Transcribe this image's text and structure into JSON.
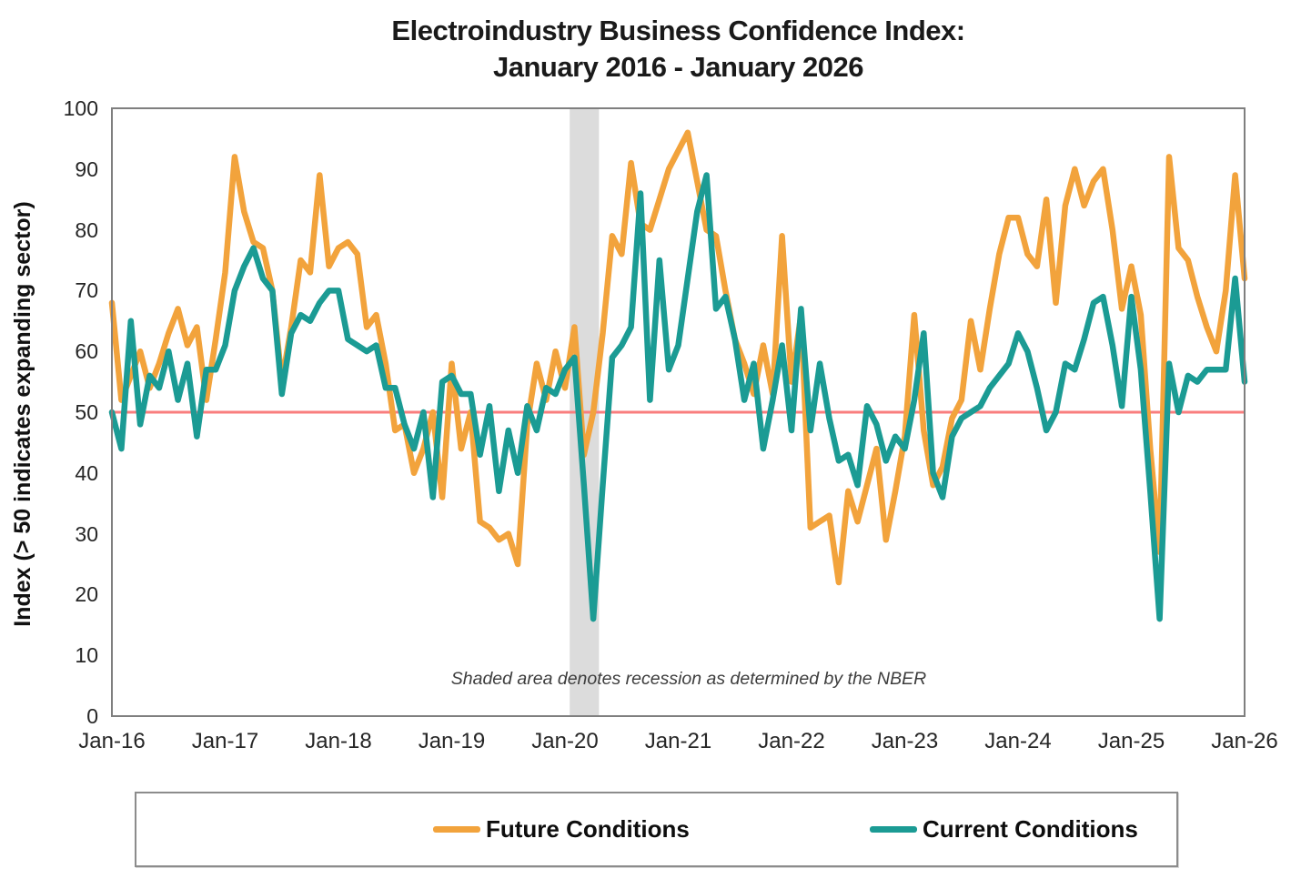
{
  "title": {
    "line1": "Electroindustry Business Confidence Index:",
    "line2": "January 2016 - January 2026"
  },
  "y_axis": {
    "title": "Index (> 50 indicates expanding sector)",
    "tick_labels": [
      "0",
      "10",
      "20",
      "30",
      "40",
      "50",
      "60",
      "70",
      "80",
      "90",
      "100"
    ]
  },
  "x_axis": {
    "tick_labels": [
      "Jan-16",
      "Jan-17",
      "Jan-18",
      "Jan-19",
      "Jan-20",
      "Jan-21",
      "Jan-22",
      "Jan-23",
      "Jan-24",
      "Jan-25",
      "Jan-26"
    ]
  },
  "annotation": "Shaded area denotes recession as determined by the NBER",
  "legend": {
    "items": [
      {
        "label": "Future Conditions",
        "color": "#F2A33C"
      },
      {
        "label": "Current Conditions",
        "color": "#1B9B94"
      }
    ]
  },
  "colors": {
    "future": "#F2A33C",
    "current": "#1B9B94",
    "reference_line": "#F97E7E",
    "recession_band": "#DCDCDC",
    "plot_border": "#7F7F7F",
    "tick_text": "#262626"
  },
  "chart_data": {
    "type": "line",
    "title": "Electroindustry Business Confidence Index: January 2016 - January 2026",
    "xlabel": "",
    "ylabel": "Index (> 50 indicates expanding sector)",
    "ylim": [
      0,
      100
    ],
    "y_tick_step": 10,
    "grid": false,
    "legend_position": "bottom",
    "x_interval": "monthly",
    "x_start": "Jan-2016",
    "x_end": "Jan-2026",
    "points_per_series": 121,
    "x_tick_labels": [
      "Jan-16",
      "Jan-17",
      "Jan-18",
      "Jan-19",
      "Jan-20",
      "Jan-21",
      "Jan-22",
      "Jan-23",
      "Jan-24",
      "Jan-25",
      "Jan-26"
    ],
    "reference_line_y": 50,
    "recession_band_month_range": [
      48.5,
      51.6
    ],
    "series": [
      {
        "name": "Future Conditions",
        "color": "#F2A33C",
        "values": [
          68,
          52,
          56,
          60,
          54,
          58,
          63,
          67,
          61,
          64,
          52,
          62,
          73,
          92,
          83,
          78,
          77,
          70,
          55,
          64,
          75,
          73,
          89,
          74,
          77,
          78,
          76,
          64,
          66,
          58,
          47,
          48,
          40,
          44,
          50,
          36,
          58,
          44,
          50,
          32,
          31,
          29,
          30,
          25,
          48,
          58,
          52,
          60,
          54,
          64,
          43,
          50,
          63,
          79,
          76,
          91,
          81,
          80,
          85,
          90,
          93,
          96,
          88,
          80,
          79,
          70,
          62,
          58,
          53,
          61,
          53,
          79,
          55,
          66,
          31,
          32,
          33,
          22,
          37,
          32,
          38,
          44,
          29,
          37,
          46,
          66,
          47,
          38,
          41,
          49,
          52,
          65,
          57,
          67,
          76,
          82,
          82,
          76,
          74,
          85,
          68,
          84,
          90,
          84,
          88,
          90,
          80,
          67,
          74,
          66,
          44,
          27,
          92,
          77,
          75,
          69,
          64,
          60,
          70,
          89,
          72
        ]
      },
      {
        "name": "Current Conditions",
        "color": "#1B9B94",
        "values": [
          50,
          44,
          65,
          48,
          56,
          54,
          60,
          52,
          58,
          46,
          57,
          57,
          61,
          70,
          74,
          77,
          72,
          70,
          53,
          63,
          66,
          65,
          68,
          70,
          70,
          62,
          61,
          60,
          61,
          54,
          54,
          48,
          44,
          50,
          36,
          55,
          56,
          53,
          53,
          43,
          51,
          37,
          47,
          40,
          51,
          47,
          54,
          53,
          57,
          59,
          38,
          16,
          38,
          59,
          61,
          64,
          86,
          52,
          75,
          57,
          61,
          72,
          83,
          89,
          67,
          69,
          62,
          52,
          58,
          44,
          52,
          61,
          47,
          67,
          47,
          58,
          49,
          42,
          43,
          38,
          51,
          48,
          42,
          46,
          44,
          52,
          63,
          40,
          36,
          46,
          49,
          50,
          51,
          54,
          56,
          58,
          63,
          60,
          54,
          47,
          50,
          58,
          57,
          62,
          68,
          69,
          61,
          51,
          69,
          57,
          37,
          16,
          58,
          50,
          56,
          55,
          57,
          57,
          57,
          72,
          55
        ]
      }
    ]
  }
}
